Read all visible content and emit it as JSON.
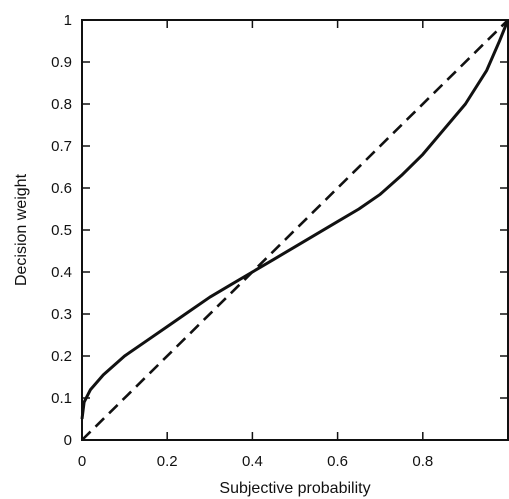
{
  "chart_data": {
    "type": "line",
    "title": "",
    "xlabel": "Subjective probability",
    "ylabel": "Decision weight",
    "xlim": [
      0,
      1
    ],
    "ylim": [
      0,
      1
    ],
    "grid": false,
    "x_ticks": [
      {
        "value": 0,
        "label": "0"
      },
      {
        "value": 0.2,
        "label": "0.2"
      },
      {
        "value": 0.4,
        "label": "0.4"
      },
      {
        "value": 0.6,
        "label": "0.6"
      },
      {
        "value": 0.8,
        "label": "0.8"
      }
    ],
    "y_ticks": [
      {
        "value": 0,
        "label": "0"
      },
      {
        "value": 0.1,
        "label": "0.1"
      },
      {
        "value": 0.2,
        "label": "0.2"
      },
      {
        "value": 0.3,
        "label": "0.3"
      },
      {
        "value": 0.4,
        "label": "0.4"
      },
      {
        "value": 0.5,
        "label": "0.5"
      },
      {
        "value": 0.6,
        "label": "0.6"
      },
      {
        "value": 0.7,
        "label": "0.7"
      },
      {
        "value": 0.8,
        "label": "0.8"
      },
      {
        "value": 0.9,
        "label": "0.9"
      },
      {
        "value": 1,
        "label": "1"
      }
    ],
    "series": [
      {
        "style": "solid",
        "color": "#111111",
        "x": [
          0,
          0.005,
          0.02,
          0.05,
          0.1,
          0.15,
          0.2,
          0.25,
          0.3,
          0.35,
          0.4,
          0.45,
          0.5,
          0.55,
          0.6,
          0.65,
          0.7,
          0.75,
          0.8,
          0.85,
          0.9,
          0.95,
          0.98,
          1.0
        ],
        "y": [
          0.05,
          0.09,
          0.12,
          0.155,
          0.2,
          0.235,
          0.27,
          0.305,
          0.34,
          0.37,
          0.4,
          0.43,
          0.46,
          0.49,
          0.52,
          0.55,
          0.585,
          0.63,
          0.68,
          0.74,
          0.8,
          0.88,
          0.95,
          1.0
        ]
      },
      {
        "style": "dashed",
        "color": "#111111",
        "x": [
          0,
          1
        ],
        "y": [
          0,
          1
        ]
      }
    ]
  }
}
